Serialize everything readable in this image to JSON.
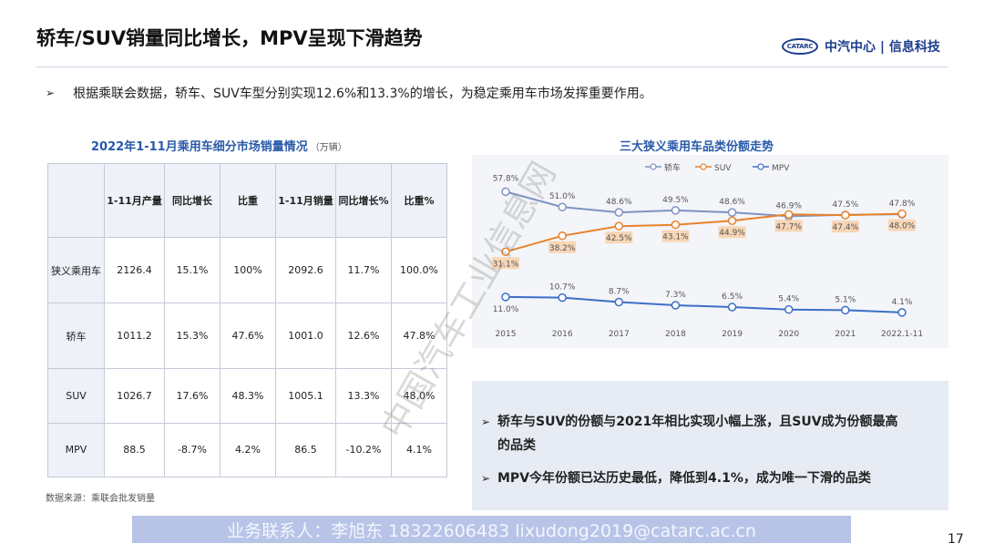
{
  "header": {
    "title": "轿车/SUV销量同比增长，MPV呈现下滑趋势",
    "logo_badge": "CATARC",
    "logo_text": "中汽中心 | 信息科技"
  },
  "intro": {
    "arrow": "➢",
    "text": "根据乘联会数据，轿车、SUV车型分别实现12.6%和13.3%的增长，为稳定乘用车市场发挥重要作用。"
  },
  "table": {
    "title": "2022年1-11月乘用车细分市场销量情况",
    "unit": "（万辆）",
    "headers": [
      "",
      "1-11月产量",
      "同比增长",
      "比重",
      "1-11月销量",
      "同比增长%",
      "比重%"
    ],
    "rows": [
      [
        "狭义乘用车",
        "2126.4",
        "15.1%",
        "100%",
        "2092.6",
        "11.7%",
        "100.0%"
      ],
      [
        "轿车",
        "1011.2",
        "15.3%",
        "47.6%",
        "1001.0",
        "12.6%",
        "47.8%"
      ],
      [
        "SUV",
        "1026.7",
        "17.6%",
        "48.3%",
        "1005.1",
        "13.3%",
        "48.0%"
      ],
      [
        "MPV",
        "88.5",
        "-8.7%",
        "4.2%",
        "86.5",
        "-10.2%",
        "4.1%"
      ]
    ],
    "source": "数据来源：乘联会批发销量"
  },
  "chart_data": {
    "type": "line",
    "title": "三大狭义乘用车品类份额走势",
    "categories": [
      "2015",
      "2016",
      "2017",
      "2018",
      "2019",
      "2020",
      "2021",
      "2022.1-11"
    ],
    "ylim": [
      0,
      60
    ],
    "legend_position": "top",
    "grid": false,
    "series": [
      {
        "name": "轿车",
        "color": "#7f93c2",
        "values": [
          57.8,
          51.0,
          48.6,
          49.5,
          48.6,
          46.9,
          47.5,
          47.8
        ],
        "labels": [
          "57.8%",
          "51.0%",
          "48.6%",
          "49.5%",
          "48.6%",
          "46.9%",
          "47.5%",
          "47.8%"
        ]
      },
      {
        "name": "SUV",
        "color": "#e8822a",
        "values": [
          31.1,
          38.2,
          42.5,
          43.1,
          44.9,
          47.7,
          47.4,
          48.0
        ],
        "labels": [
          "31.1%",
          "38.2%",
          "42.5%",
          "43.1%",
          "44.9%",
          "47.7%",
          "47.4%",
          "48.0%"
        ]
      },
      {
        "name": "MPV",
        "color": "#3e6fc6",
        "values": [
          11.0,
          10.7,
          8.7,
          7.3,
          6.5,
          5.4,
          5.1,
          4.1
        ],
        "labels": [
          "11.0%",
          "10.7%",
          "8.7%",
          "7.3%",
          "6.5%",
          "5.4%",
          "5.1%",
          "4.1%"
        ]
      }
    ]
  },
  "summary": {
    "arrow": "➢",
    "items": [
      {
        "line1": "轿车与SUV的份额与2021年相比实现小幅上涨，且SUV成为份额最高",
        "line2": "的品类"
      },
      {
        "line1": "MPV今年份额已达历史最低，降低到4.1%，成为唯一下滑的品类",
        "line2": ""
      }
    ]
  },
  "footer": {
    "contact": "业务联系人：李旭东  18322606483  lixudong2019@catarc.ac.cn",
    "page": "17"
  },
  "watermark": "中国汽车工业信息网"
}
